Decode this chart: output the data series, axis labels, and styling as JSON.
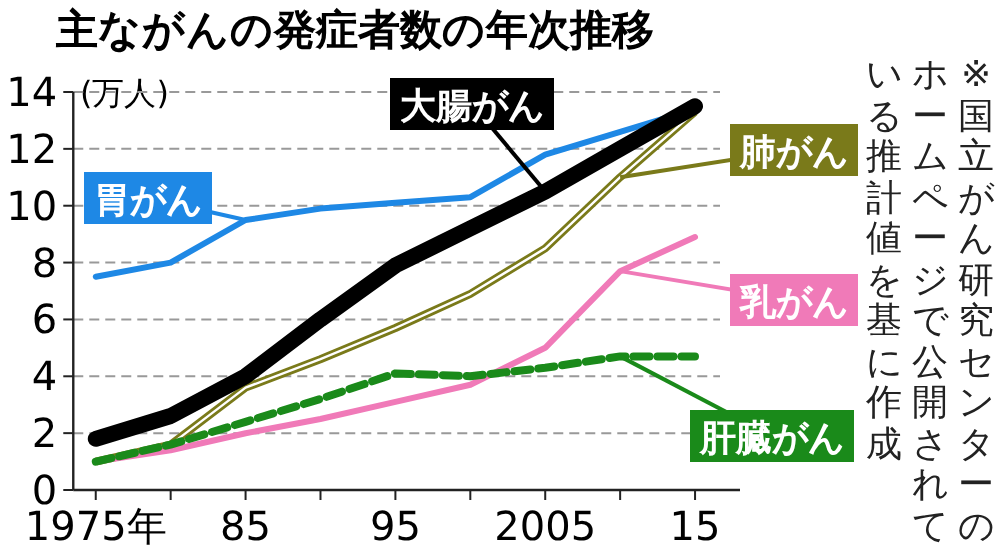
{
  "chart_data": {
    "type": "line",
    "title": "主ながんの発症者数の年次推移",
    "ylabel": "(万人)",
    "annotations": [
      "※国立がん研究センターのホームページで公開されている推計値を基に作成"
    ],
    "x": [
      1975,
      1980,
      1985,
      1990,
      1995,
      2000,
      2005,
      2010,
      2015
    ],
    "xlim": [
      1973.5,
      2018
    ],
    "xticks": [
      {
        "value": 1975,
        "label": "1975年"
      },
      {
        "value": 1980,
        "label": null
      },
      {
        "value": 1985,
        "label": "85"
      },
      {
        "value": 1990,
        "label": null
      },
      {
        "value": 1995,
        "label": "95"
      },
      {
        "value": 2000,
        "label": null
      },
      {
        "value": 2005,
        "label": "2005"
      },
      {
        "value": 2010,
        "label": null
      },
      {
        "value": 2015,
        "label": "15"
      }
    ],
    "ylim": [
      0,
      14
    ],
    "yticks": [
      0,
      2,
      4,
      6,
      8,
      10,
      12,
      14
    ],
    "grid": "y",
    "legend": false,
    "series": [
      {
        "name": "胃がん",
        "color": "#1e88e5",
        "values": [
          7.5,
          8.0,
          9.5,
          9.9,
          10.1,
          10.3,
          11.8,
          12.6,
          13.4
        ]
      },
      {
        "name": "肺がん",
        "color": "#7a7a1a",
        "values": [
          1.0,
          1.6,
          3.6,
          4.6,
          5.7,
          6.9,
          8.5,
          11.0,
          13.3
        ]
      },
      {
        "name": "乳がん",
        "color": "#f07ab8",
        "values": [
          1.0,
          1.4,
          2.0,
          2.5,
          3.1,
          3.7,
          5.0,
          7.7,
          8.9
        ]
      },
      {
        "name": "肝臓がん",
        "color": "#1a8a1a",
        "line_style": "dashed",
        "values": [
          1.0,
          1.6,
          2.4,
          3.2,
          4.1,
          4.0,
          4.3,
          4.7,
          4.7
        ]
      },
      {
        "name": "大腸がん",
        "color": "#000000",
        "values": [
          1.8,
          2.6,
          4.0,
          6.0,
          7.9,
          9.2,
          10.5,
          12.0,
          13.5
        ]
      }
    ]
  }
}
